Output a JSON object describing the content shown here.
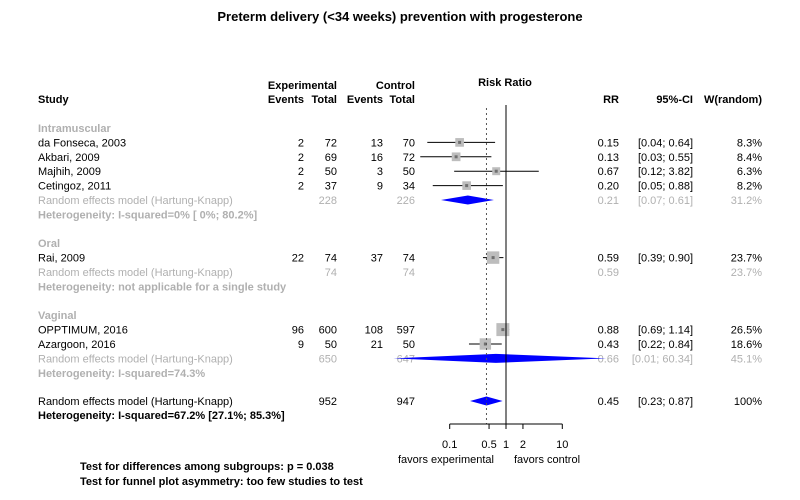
{
  "colors": {
    "grey": "#b0b0b0",
    "diamond": "#0000ff",
    "box": "#bdbdbd",
    "point": "#707070",
    "text": "#000000"
  },
  "chart_data": {
    "type": "forest",
    "title": "Preterm delivery (<34 weeks) prevention with progesterone",
    "headers": {
      "study": "Study",
      "experimental": "Experimental",
      "control": "Control",
      "events": "Events",
      "total": "Total",
      "risk_ratio": "Risk Ratio",
      "rr": "RR",
      "ci": "95%-CI",
      "weight": "W(random)"
    },
    "axis": {
      "scale": "log",
      "ticks": [
        "0.1",
        "0.5",
        "1",
        "2",
        "10"
      ],
      "tick_values": [
        0.1,
        0.5,
        1,
        2,
        10
      ],
      "reference_line": 1,
      "pooled_line": 0.45,
      "range": [
        0.05,
        15
      ]
    },
    "label_left": "favors experimental",
    "label_right": "favors control",
    "subgroups": [
      {
        "name": "Intramuscular",
        "studies": [
          {
            "study": "da Fonseca, 2003",
            "e_events": "2",
            "e_total": "72",
            "c_events": "13",
            "c_total": "70",
            "rr_text": "0.15",
            "ci_text": "[0.04; 0.64]",
            "weight_text": "8.3%",
            "rr": 0.15,
            "lower": 0.04,
            "upper": 0.64,
            "weight": 8.3
          },
          {
            "study": "Akbari, 2009",
            "e_events": "2",
            "e_total": "69",
            "c_events": "16",
            "c_total": "72",
            "rr_text": "0.13",
            "ci_text": "[0.03; 0.55]",
            "weight_text": "8.4%",
            "rr": 0.13,
            "lower": 0.03,
            "upper": 0.55,
            "weight": 8.4
          },
          {
            "study": "Majhih, 2009",
            "e_events": "2",
            "e_total": "50",
            "c_events": "3",
            "c_total": "50",
            "rr_text": "0.67",
            "ci_text": "[0.12; 3.82]",
            "weight_text": "6.3%",
            "rr": 0.67,
            "lower": 0.12,
            "upper": 3.82,
            "weight": 6.3
          },
          {
            "study": "Cetingoz, 2011",
            "e_events": "2",
            "e_total": "37",
            "c_events": "9",
            "c_total": "34",
            "rr_text": "0.20",
            "ci_text": "[0.05; 0.88]",
            "weight_text": "8.2%",
            "rr": 0.2,
            "lower": 0.05,
            "upper": 0.88,
            "weight": 8.2
          }
        ],
        "pooled": {
          "label": "Random effects model  (Hartung-Knapp)",
          "e_total": "228",
          "c_total": "226",
          "rr_text": "0.21",
          "ci_text": "[0.07; 0.61]",
          "weight_text": "31.2%",
          "rr": 0.21,
          "lower": 0.07,
          "upper": 0.61
        },
        "heterogeneity": "Heterogeneity: I-squared=0% [  0%; 80.2%]"
      },
      {
        "name": "Oral",
        "studies": [
          {
            "study": "Rai, 2009",
            "e_events": "22",
            "e_total": "74",
            "c_events": "37",
            "c_total": "74",
            "rr_text": "0.59",
            "ci_text": "[0.39; 0.90]",
            "weight_text": "23.7%",
            "rr": 0.59,
            "lower": 0.39,
            "upper": 0.9,
            "weight": 23.7
          }
        ],
        "pooled": {
          "label": "Random effects model  (Hartung-Knapp)",
          "e_total": "74",
          "c_total": "74",
          "rr_text": "0.59",
          "ci_text": "",
          "weight_text": "23.7%",
          "rr": 0.59,
          "lower": null,
          "upper": null
        },
        "heterogeneity": "Heterogeneity: not applicable for a single study"
      },
      {
        "name": "Vaginal",
        "studies": [
          {
            "study": "OPPTIMUM, 2016",
            "e_events": "96",
            "e_total": "600",
            "c_events": "108",
            "c_total": "597",
            "rr_text": "0.88",
            "ci_text": "[0.69; 1.14]",
            "weight_text": "26.5%",
            "rr": 0.88,
            "lower": 0.69,
            "upper": 1.14,
            "weight": 26.5
          },
          {
            "study": "Azargoon, 2016",
            "e_events": "9",
            "e_total": "50",
            "c_events": "21",
            "c_total": "50",
            "rr_text": "0.43",
            "ci_text": "[0.22; 0.84]",
            "weight_text": "18.6%",
            "rr": 0.43,
            "lower": 0.22,
            "upper": 0.84,
            "weight": 18.6
          }
        ],
        "pooled": {
          "label": "Random effects model  (Hartung-Knapp)",
          "e_total": "650",
          "c_total": "647",
          "rr_text": "0.66",
          "ci_text": "[0.01; 60.34]",
          "weight_text": "45.1%",
          "rr": 0.66,
          "lower": 0.01,
          "upper": 60.34
        },
        "heterogeneity": "Heterogeneity: I-squared=74.3%"
      }
    ],
    "overall": {
      "label": "Random effects model  (Hartung-Knapp)",
      "e_total": "952",
      "c_total": "947",
      "rr_text": "0.45",
      "ci_text": "[0.23; 0.87]",
      "weight_text": "100%",
      "rr": 0.45,
      "lower": 0.23,
      "upper": 0.87,
      "heterogeneity": "Heterogeneity: I-squared=67.2% [27.1%; 85.3%]"
    },
    "footnotes": [
      "Test for differences among subgroups: p = 0.038",
      "Test for funnel plot asymmetry: too few studies to test"
    ]
  }
}
